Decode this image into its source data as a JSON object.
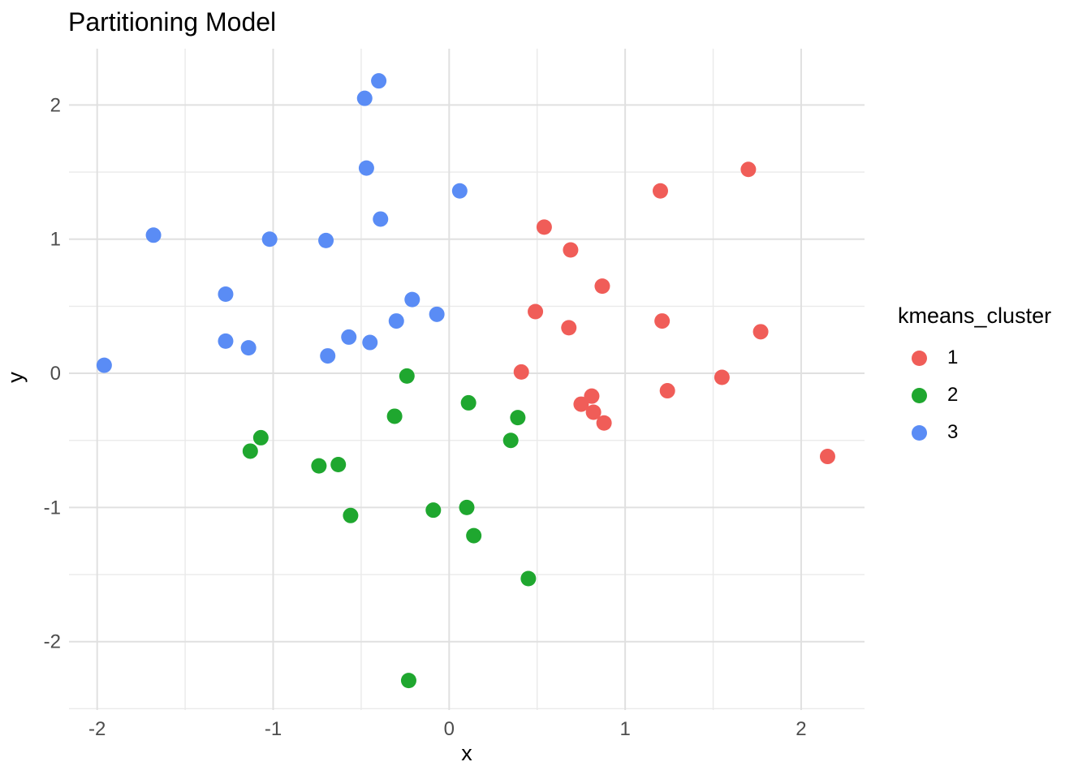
{
  "figure": {
    "background": "#FFFFFF",
    "grid_major_color": "#E0E0E0",
    "grid_minor_color": "#EAEAEA",
    "tick_label_color": "#4D4D4D",
    "text_color": "#000000"
  },
  "chart_data": {
    "type": "scatter",
    "title": "Partitioning Model",
    "xlabel": "x",
    "ylabel": "y",
    "xlim": [
      -2.16,
      2.36
    ],
    "ylim": [
      -2.51,
      2.42
    ],
    "x_ticks": [
      -2,
      -1,
      0,
      1,
      2
    ],
    "y_ticks": [
      -2,
      -1,
      0,
      1,
      2
    ],
    "grid": true,
    "legend_title": "kmeans_cluster",
    "legend_position": "right",
    "series": [
      {
        "name": "1",
        "color": "#F05D58",
        "points": [
          [
            0.54,
            1.09
          ],
          [
            0.69,
            0.92
          ],
          [
            1.2,
            1.36
          ],
          [
            1.7,
            1.52
          ],
          [
            0.87,
            0.65
          ],
          [
            0.49,
            0.46
          ],
          [
            0.68,
            0.34
          ],
          [
            1.21,
            0.39
          ],
          [
            1.77,
            0.31
          ],
          [
            0.41,
            0.01
          ],
          [
            1.55,
            -0.03
          ],
          [
            1.24,
            -0.13
          ],
          [
            0.81,
            -0.17
          ],
          [
            0.75,
            -0.23
          ],
          [
            0.82,
            -0.29
          ],
          [
            0.88,
            -0.37
          ],
          [
            2.15,
            -0.62
          ]
        ]
      },
      {
        "name": "2",
        "color": "#1FA72F",
        "points": [
          [
            -0.24,
            -0.02
          ],
          [
            0.11,
            -0.22
          ],
          [
            -0.31,
            -0.32
          ],
          [
            0.39,
            -0.33
          ],
          [
            0.35,
            -0.5
          ],
          [
            -1.07,
            -0.48
          ],
          [
            -1.13,
            -0.58
          ],
          [
            -0.74,
            -0.69
          ],
          [
            -0.63,
            -0.68
          ],
          [
            -0.56,
            -1.06
          ],
          [
            -0.09,
            -1.02
          ],
          [
            0.1,
            -1.0
          ],
          [
            0.14,
            -1.21
          ],
          [
            0.45,
            -1.53
          ],
          [
            -0.23,
            -2.29
          ]
        ]
      },
      {
        "name": "3",
        "color": "#5A8CF5",
        "points": [
          [
            -1.96,
            0.06
          ],
          [
            -1.68,
            1.03
          ],
          [
            -1.27,
            0.59
          ],
          [
            -1.27,
            0.24
          ],
          [
            -1.14,
            0.19
          ],
          [
            -1.02,
            1.0
          ],
          [
            -0.7,
            0.99
          ],
          [
            -0.69,
            0.13
          ],
          [
            -0.57,
            0.27
          ],
          [
            -0.48,
            2.05
          ],
          [
            -0.47,
            1.53
          ],
          [
            -0.45,
            0.23
          ],
          [
            -0.4,
            2.18
          ],
          [
            -0.39,
            1.15
          ],
          [
            -0.3,
            0.39
          ],
          [
            -0.21,
            0.55
          ],
          [
            -0.07,
            0.44
          ],
          [
            0.06,
            1.36
          ]
        ]
      }
    ]
  }
}
